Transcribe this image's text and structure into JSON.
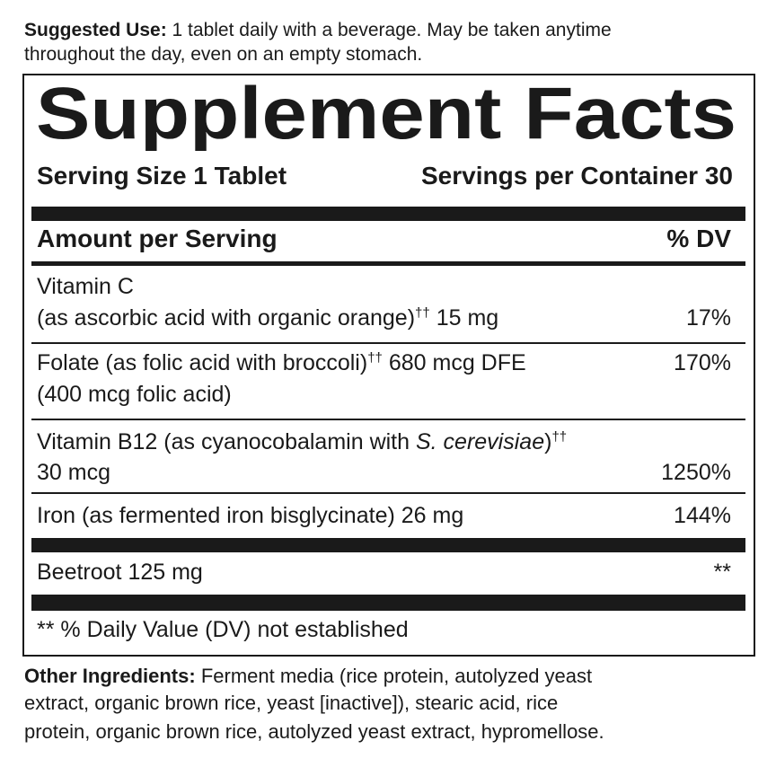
{
  "suggested_use": {
    "label": "Suggested Use:",
    "line1": "1 tablet daily with a beverage. May be taken anytime",
    "line2": "throughout the day, even on an empty stomach."
  },
  "panel": {
    "title": "Supplement Facts",
    "serving_size": "Serving Size 1 Tablet",
    "servings_per_container": "Servings per Container 30",
    "amount_header": "Amount per Serving",
    "dv_header": "% DV",
    "footnote": "** % Daily Value (DV) not established"
  },
  "rows": [
    {
      "line1": "Vitamin C",
      "line2": "(as ascorbic acid with organic orange)",
      "mark": "††",
      "amount": "15 mg",
      "dv": "17%"
    },
    {
      "line1": "Folate (as folic acid with broccoli)",
      "mark": "††",
      "amount": "680 mcg DFE",
      "line2": "(400 mcg folic acid)",
      "dv": "170%"
    },
    {
      "line1": "Vitamin B12 (as cyanocobalamin with ",
      "italic": "S. cerevisiae",
      "line1_end": ")",
      "mark": "††",
      "line2": "30 mcg",
      "dv": "1250%"
    },
    {
      "line1": "Iron (as fermented iron bisglycinate) 26 mg",
      "dv": "144%"
    },
    {
      "line1": "Beetroot 125 mg",
      "dv": "**"
    }
  ],
  "other_ingredients": {
    "label": "Other Ingredients:",
    "line1": "Ferment media (rice protein, autolyzed yeast",
    "line2": "extract, organic brown rice, yeast [inactive]), stearic acid, rice",
    "line3": "protein, organic brown rice, autolyzed yeast extract, hypromellose."
  }
}
